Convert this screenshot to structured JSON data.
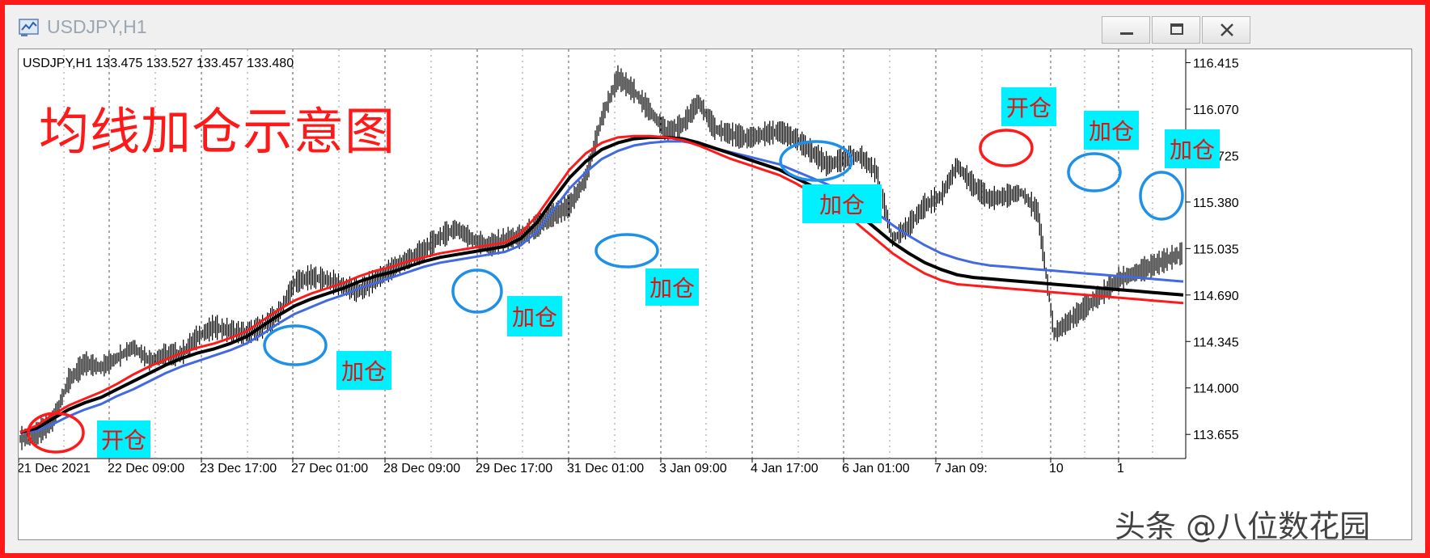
{
  "window": {
    "title": "USDJPY,H1",
    "buttons": {
      "minimize": "minimize-icon",
      "restore": "restore-icon",
      "close": "close-icon"
    }
  },
  "chart_header": "USDJPY,H1  133.475 133.527 133.457 133.480",
  "overlay_title": "均线加仓示意图",
  "watermark": "头条 @八位数花园",
  "colors": {
    "frame": "#ff1a1a",
    "ma_fast": "#ff1a1a",
    "ma_mid": "#000000",
    "ma_slow": "#4169e1",
    "callout_bg": "#00f0ff",
    "callout_text": "#e0140e",
    "circle_open": "#ff1a1a",
    "circle_add": "#1e90e8"
  },
  "callouts": [
    {
      "text": "开仓",
      "kind": "open"
    },
    {
      "text": "加仓",
      "kind": "add"
    },
    {
      "text": "加仓",
      "kind": "add"
    },
    {
      "text": "加仓",
      "kind": "add"
    },
    {
      "text": "加仓",
      "kind": "add"
    },
    {
      "text": "开仓",
      "kind": "open"
    },
    {
      "text": "加仓",
      "kind": "add"
    },
    {
      "text": "加仓",
      "kind": "add"
    }
  ],
  "chart_data": {
    "type": "line",
    "title": "USDJPY,H1",
    "ylabel": "",
    "xlabel": "",
    "ylim": [
      113.5,
      116.49
    ],
    "y_ticks": [
      "116.415",
      "116.070",
      "115.725",
      "115.380",
      "115.035",
      "114.690",
      "114.345",
      "114.000",
      "113.655"
    ],
    "x_ticks": [
      "21 Dec 2021",
      "22 Dec 09:00",
      "23 Dec 17:00",
      "27 Dec 01:00",
      "28 Dec 09:00",
      "29 Dec 17:00",
      "31 Dec 01:00",
      "3 Jan 09:00",
      "4 Jan 17:00",
      "6 Jan 01:00",
      "7 Jan 09:",
      "10",
      "1"
    ],
    "grid": "vertical dashed",
    "x": [
      0,
      20,
      40,
      60,
      80,
      100,
      120,
      140,
      160,
      180,
      200,
      220,
      240,
      260,
      280,
      300,
      320,
      340,
      360,
      380,
      400,
      420,
      440,
      460,
      480,
      500,
      520,
      540,
      560,
      580,
      600,
      620,
      640,
      660,
      680,
      700,
      720,
      740,
      760,
      780,
      800,
      820,
      840,
      860,
      880,
      900,
      920,
      940,
      960,
      980,
      1000,
      1020,
      1040,
      1060,
      1080,
      1100,
      1120,
      1140,
      1160,
      1180,
      1200,
      1220,
      1240,
      1260,
      1280,
      1300,
      1320,
      1340,
      1360,
      1380,
      1400,
      1420,
      1440
    ],
    "series": [
      {
        "name": "",
        "values": [
          113.62,
          113.65,
          113.75,
          114.05,
          114.18,
          114.15,
          114.22,
          114.3,
          114.2,
          114.24,
          114.25,
          114.38,
          114.45,
          114.42,
          114.4,
          114.45,
          114.55,
          114.78,
          114.82,
          114.8,
          114.75,
          114.72,
          114.8,
          114.88,
          114.95,
          115.02,
          115.12,
          115.18,
          115.1,
          115.05,
          115.1,
          115.12,
          115.2,
          115.28,
          115.35,
          115.55,
          116.0,
          116.3,
          116.2,
          116.05,
          115.9,
          115.95,
          116.12,
          115.92,
          115.88,
          115.85,
          115.88,
          115.9,
          115.85,
          115.75,
          115.65,
          115.7,
          115.72,
          115.6,
          115.1,
          115.2,
          115.35,
          115.42,
          115.65,
          115.5,
          115.4,
          115.42,
          115.45,
          115.3,
          114.4,
          114.5,
          114.6,
          114.7,
          114.8,
          114.85,
          114.9,
          114.95,
          115.0
        ]
      },
      {
        "name": "",
        "values": [
          113.67,
          113.72,
          113.8,
          113.87,
          113.92,
          113.97,
          114.03,
          114.1,
          114.16,
          114.21,
          114.26,
          114.3,
          114.33,
          114.37,
          114.42,
          114.5,
          114.58,
          114.65,
          114.7,
          114.74,
          114.78,
          114.83,
          114.87,
          114.9,
          114.94,
          114.97,
          115.0,
          115.02,
          115.04,
          115.06,
          115.08,
          115.15,
          115.28,
          115.45,
          115.62,
          115.74,
          115.82,
          115.86,
          115.87,
          115.87,
          115.86,
          115.84,
          115.8,
          115.75,
          115.7,
          115.66,
          115.62,
          115.58,
          115.52,
          115.45,
          115.38,
          115.31,
          115.2,
          115.1,
          115.0,
          114.92,
          114.85,
          114.8,
          114.77,
          114.76,
          114.75,
          114.74,
          114.73,
          114.72,
          114.71,
          114.7,
          114.69,
          114.68,
          114.67,
          114.66,
          114.65,
          114.64,
          114.63
        ]
      },
      {
        "name": "",
        "values": [
          113.67,
          113.7,
          113.77,
          113.84,
          113.89,
          113.93,
          113.99,
          114.05,
          114.11,
          114.17,
          114.22,
          114.26,
          114.29,
          114.33,
          114.38,
          114.46,
          114.54,
          114.61,
          114.66,
          114.7,
          114.74,
          114.79,
          114.83,
          114.86,
          114.9,
          114.94,
          114.97,
          114.99,
          115.01,
          115.03,
          115.05,
          115.11,
          115.23,
          115.4,
          115.56,
          115.68,
          115.77,
          115.82,
          115.85,
          115.86,
          115.86,
          115.85,
          115.82,
          115.78,
          115.74,
          115.7,
          115.66,
          115.62,
          115.56,
          115.5,
          115.44,
          115.38,
          115.28,
          115.18,
          115.08,
          115.0,
          114.93,
          114.88,
          114.84,
          114.82,
          114.81,
          114.8,
          114.79,
          114.78,
          114.77,
          114.76,
          114.75,
          114.74,
          114.73,
          114.72,
          114.71,
          114.7,
          114.69
        ]
      },
      {
        "name": "",
        "values": [
          113.67,
          113.68,
          113.73,
          113.79,
          113.84,
          113.88,
          113.94,
          113.99,
          114.05,
          114.11,
          114.16,
          114.2,
          114.24,
          114.28,
          114.33,
          114.4,
          114.48,
          114.55,
          114.6,
          114.65,
          114.69,
          114.74,
          114.78,
          114.82,
          114.86,
          114.9,
          114.93,
          114.95,
          114.97,
          114.99,
          115.01,
          115.06,
          115.16,
          115.32,
          115.48,
          115.6,
          115.7,
          115.76,
          115.8,
          115.82,
          115.83,
          115.83,
          115.81,
          115.78,
          115.75,
          115.72,
          115.69,
          115.66,
          115.61,
          115.56,
          115.51,
          115.46,
          115.38,
          115.3,
          115.21,
          115.13,
          115.06,
          115.0,
          114.96,
          114.93,
          114.91,
          114.9,
          114.89,
          114.88,
          114.87,
          114.86,
          114.85,
          114.84,
          114.83,
          114.82,
          114.81,
          114.8,
          114.79
        ]
      }
    ]
  }
}
